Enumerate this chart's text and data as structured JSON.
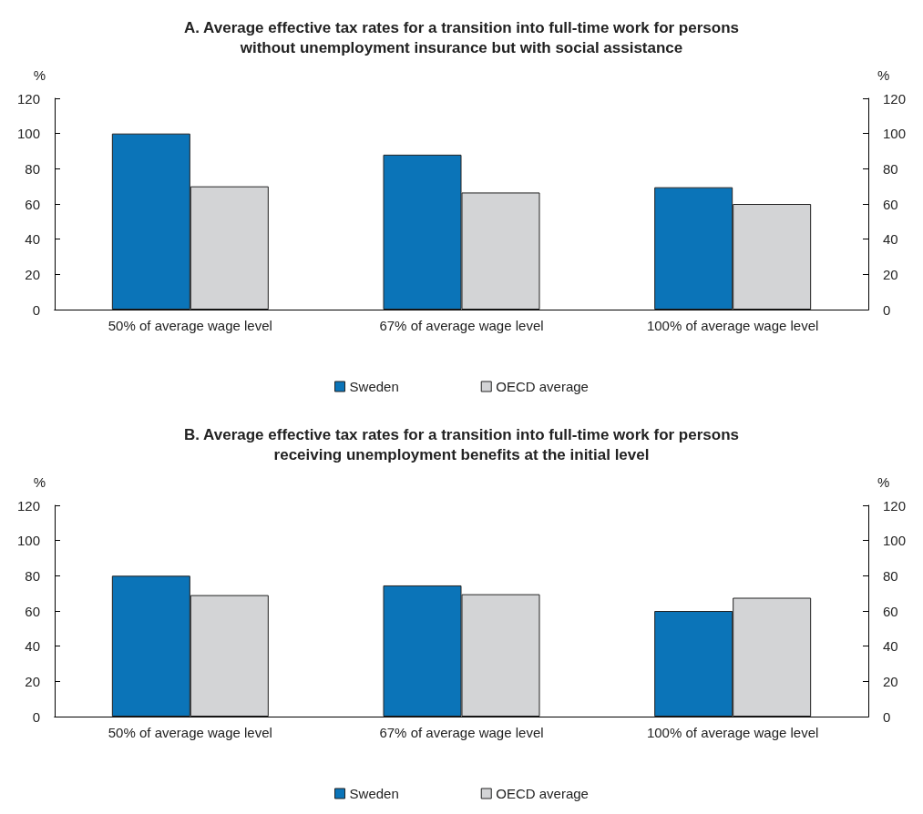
{
  "chart_data": [
    {
      "type": "bar",
      "title": "A. Average effective tax rates for a transition into full-time work for persons\nwithout unemployment insurance but with social assistance",
      "ylabel": "%",
      "y2label": "%",
      "categories": [
        "50% of average wage level",
        "67% of average wage level",
        "100% of average wage level"
      ],
      "series": [
        {
          "name": "Sweden",
          "color": "#0b74b8",
          "values": [
            100,
            88,
            69.5
          ]
        },
        {
          "name": "OECD average",
          "color": "#d3d4d6",
          "values": [
            70,
            66.5,
            60
          ]
        }
      ],
      "ylim": [
        0,
        120
      ],
      "yticks": [
        0,
        20,
        40,
        60,
        80,
        100,
        120
      ],
      "y2lim": [
        0,
        120
      ],
      "y2ticks": [
        0,
        20,
        40,
        60,
        80,
        100,
        120
      ],
      "grid": false,
      "legend": "bottom"
    },
    {
      "type": "bar",
      "title": "B. Average effective tax rates for a transition into full-time work for persons\nreceiving unemployment benefits at the initial level",
      "ylabel": "%",
      "y2label": "%",
      "categories": [
        "50% of average wage level",
        "67% of average wage level",
        "100% of average wage level"
      ],
      "series": [
        {
          "name": "Sweden",
          "color": "#0b74b8",
          "values": [
            80,
            74.5,
            60
          ]
        },
        {
          "name": "OECD average",
          "color": "#d3d4d6",
          "values": [
            69,
            69.5,
            67.5
          ]
        }
      ],
      "ylim": [
        0,
        120
      ],
      "yticks": [
        0,
        20,
        40,
        60,
        80,
        100,
        120
      ],
      "y2lim": [
        0,
        120
      ],
      "y2ticks": [
        0,
        20,
        40,
        60,
        80,
        100,
        120
      ],
      "grid": false,
      "legend": "bottom"
    }
  ]
}
